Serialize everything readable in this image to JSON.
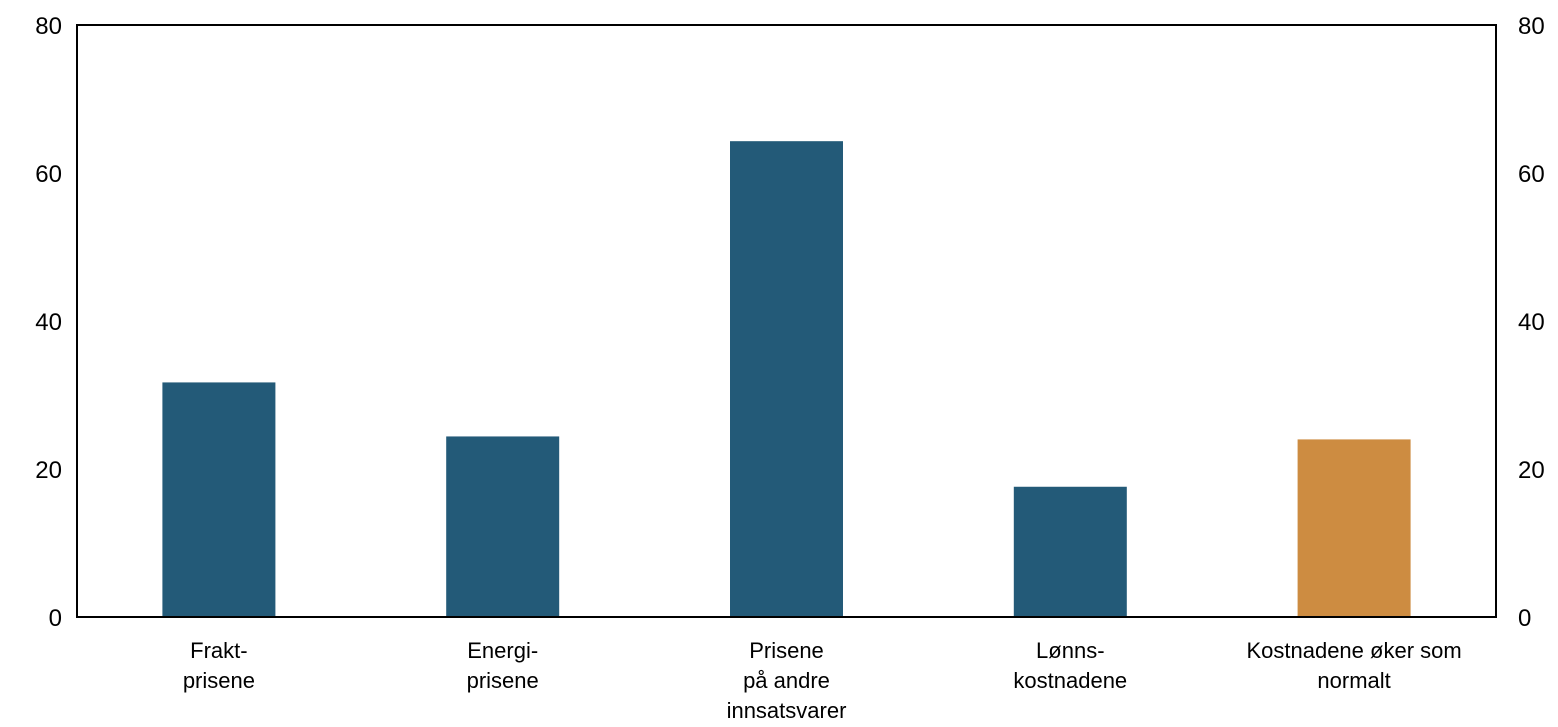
{
  "colors": {
    "bar": "#235a78",
    "highlight": "#cd8c41",
    "axis": "#000000"
  },
  "chart_data": {
    "type": "bar",
    "categories": [
      [
        "Frakt-",
        "prisene"
      ],
      [
        "Energi-",
        "prisene"
      ],
      [
        "Prisene",
        "på andre",
        "innsatsvarer"
      ],
      [
        "Lønns-",
        "kostnadene"
      ],
      [
        "Kostnadene øker som",
        "normalt"
      ]
    ],
    "values": [
      31.7,
      24.4,
      64.3,
      17.6,
      24.0
    ],
    "highlight_index": 4,
    "ylim": [
      0,
      80
    ],
    "yticks": [
      "0",
      "20",
      "40",
      "60",
      "80"
    ],
    "ytick_values": [
      0,
      20,
      40,
      60,
      80
    ],
    "secondary_yticks": [
      "0",
      "20",
      "40",
      "60",
      "80"
    ],
    "grid": false,
    "legend": "none"
  }
}
